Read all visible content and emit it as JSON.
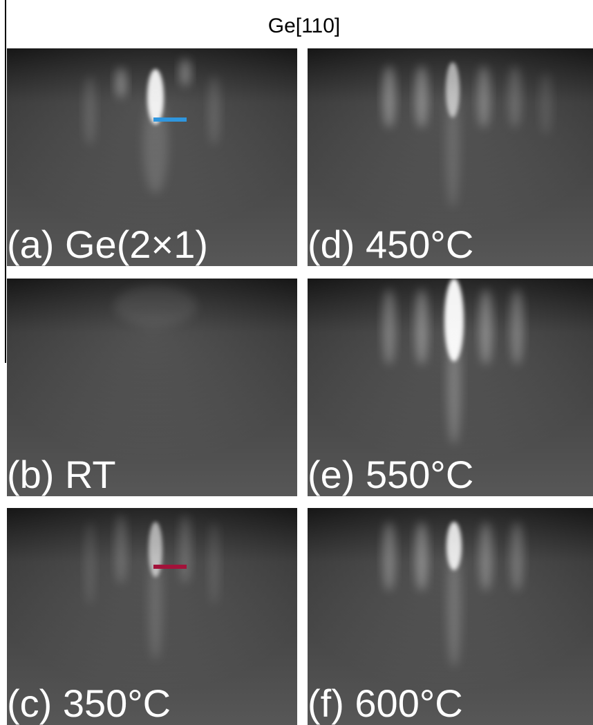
{
  "title": "Ge[110]",
  "panels": [
    {
      "label": "(a) Ge(2×1)"
    },
    {
      "label": "(b) RT"
    },
    {
      "label": "(c) 350°C"
    },
    {
      "label": "(d) 450°C"
    },
    {
      "label": "(e) 550°C"
    },
    {
      "label": "(f) 600°C"
    }
  ]
}
